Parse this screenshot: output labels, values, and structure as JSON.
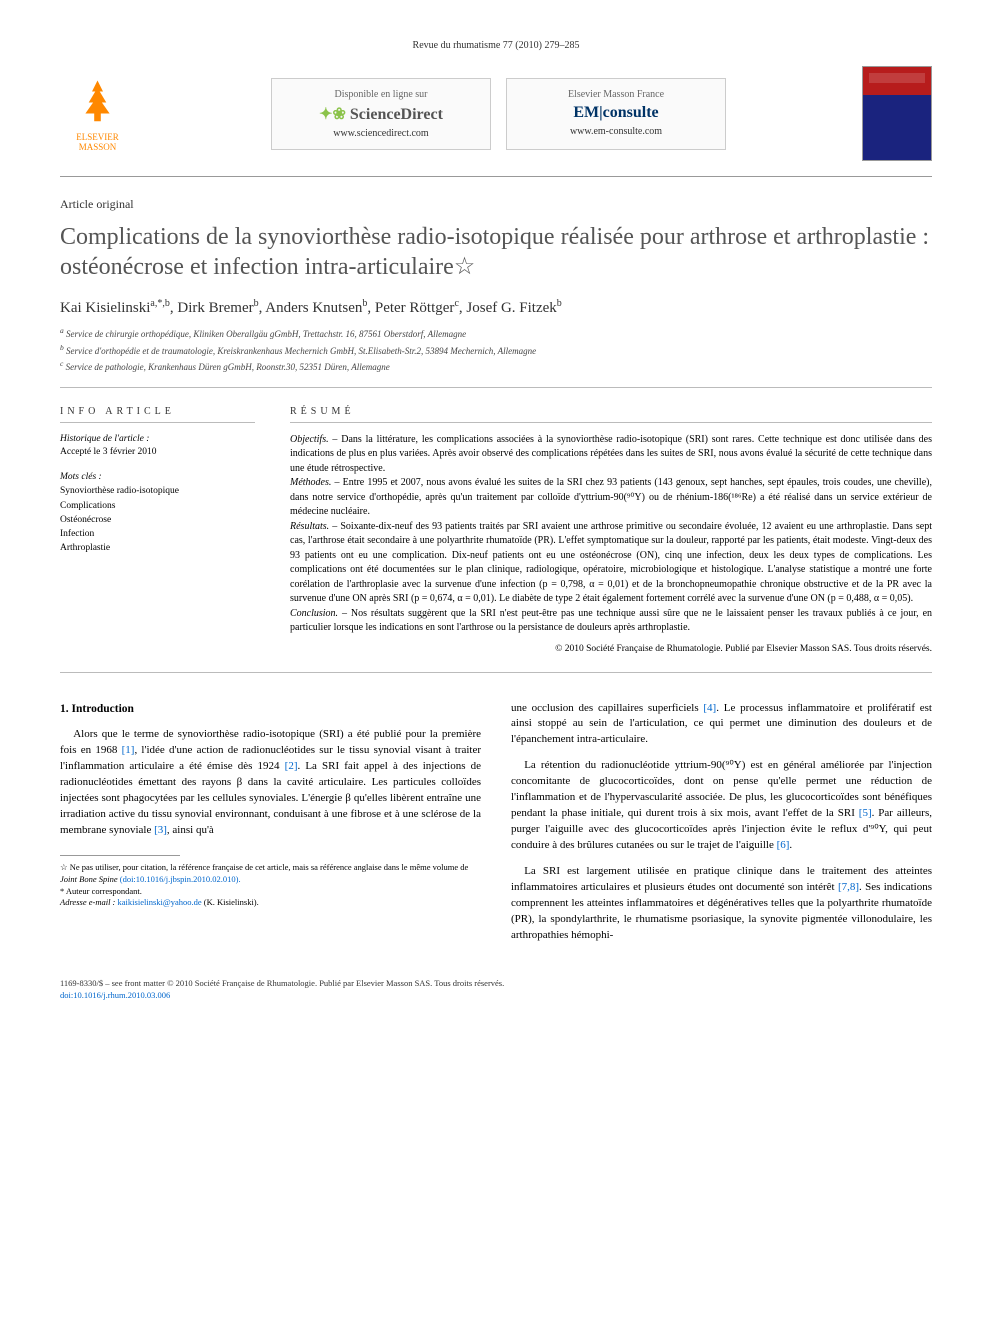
{
  "journal_header": "Revue du rhumatisme 77 (2010) 279–285",
  "elsevier_logo_text": "ELSEVIER MASSON",
  "banner_sd": {
    "line1": "Disponible en ligne sur",
    "brand": "ScienceDirect",
    "url": "www.sciencedirect.com"
  },
  "banner_em": {
    "line1": "Elsevier Masson France",
    "brand": "EM|consulte",
    "url": "www.em-consulte.com"
  },
  "article_type": "Article original",
  "title": "Complications de la synoviorthèse radio-isotopique réalisée pour arthrose et arthroplastie : ostéonécrose et infection intra-articulaire☆",
  "authors_html": "Kai Kisielinski<sup>a,*,b</sup>, Dirk Bremer<sup>b</sup>, Anders Knutsen<sup>b</sup>, Peter Röttger<sup>c</sup>, Josef G. Fitzek<sup>b</sup>",
  "affiliations": {
    "a": "Service de chirurgie orthopédique, Kliniken Oberallgäu gGmbH, Trettachstr. 16, 87561 Oberstdorf, Allemagne",
    "b": "Service d'orthopédie et de traumatologie, Kreiskrankenhaus Mechernich GmbH, St.Elisabeth-Str.2, 53894 Mechernich, Allemagne",
    "c": "Service de pathologie, Krankenhaus Düren gGmbH, Roonstr.30, 52351 Düren, Allemagne"
  },
  "info": {
    "label": "INFO ARTICLE",
    "history_heading": "Historique de l'article :",
    "history_text": "Accepté le 3 février 2010",
    "keywords_heading": "Mots clés :",
    "keywords": [
      "Synoviorthèse radio-isotopique",
      "Complications",
      "Ostéonécrose",
      "Infection",
      "Arthroplastie"
    ]
  },
  "resume": {
    "label": "RÉSUMÉ",
    "objectifs_head": "Objectifs. –",
    "objectifs": " Dans la littérature, les complications associées à la synoviorthèse radio-isotopique (SRI) sont rares. Cette technique est donc utilisée dans des indications de plus en plus variées. Après avoir observé des complications répétées dans les suites de SRI, nous avons évalué la sécurité de cette technique dans une étude rétrospective.",
    "methodes_head": "Méthodes. –",
    "methodes": " Entre 1995 et 2007, nous avons évalué les suites de la SRI chez 93 patients (143 genoux, sept hanches, sept épaules, trois coudes, une cheville), dans notre service d'orthopédie, après qu'un traitement par colloïde d'yttrium-90(⁹⁰Y) ou de rhénium-186(¹⁸⁶Re) a été réalisé dans un service extérieur de médecine nucléaire.",
    "resultats_head": "Résultats. –",
    "resultats": " Soixante-dix-neuf des 93 patients traités par SRI avaient une arthrose primitive ou secondaire évoluée, 12 avaient eu une arthroplastie. Dans sept cas, l'arthrose était secondaire à une polyarthrite rhumatoïde (PR). L'effet symptomatique sur la douleur, rapporté par les patients, était modeste. Vingt-deux des 93 patients ont eu une complication. Dix-neuf patients ont eu une ostéonécrose (ON), cinq une infection, deux les deux types de complications. Les complications ont été documentées sur le plan clinique, radiologique, opératoire, microbiologique et histologique. L'analyse statistique a montré une forte corélation de l'arthroplasie avec la survenue d'une infection (p = 0,798, α = 0,01) et de la bronchopneumopathie chronique obstructive et de la PR avec la survenue d'une ON après SRI (p = 0,674, α = 0,01). Le diabète de type 2 était également fortement corrélé avec la survenue d'une ON (p = 0,488, α = 0,05).",
    "conclusion_head": "Conclusion. –",
    "conclusion": " Nos résultats suggèrent que la SRI n'est peut-être pas une technique aussi sûre que ne le laissaient penser les travaux publiés à ce jour, en particulier lorsque les indications en sont l'arthrose ou la persistance de douleurs après arthroplastie.",
    "copyright": "© 2010 Société Française de Rhumatologie. Publié par Elsevier Masson SAS. Tous droits réservés."
  },
  "body": {
    "heading": "1. Introduction",
    "col1_p1_pre": "Alors que le terme de synoviorthèse radio-isotopique (SRI) a été publié pour la première fois en 1968 ",
    "col1_p1_ref1": "[1]",
    "col1_p1_mid1": ", l'idée d'une action de radionucléotides sur le tissu synovial visant à traiter l'inflammation articulaire a été émise dès 1924 ",
    "col1_p1_ref2": "[2]",
    "col1_p1_mid2": ". La SRI fait appel à des injections de radionucléotides émettant des rayons β dans la cavité articulaire. Les particules colloïdes injectées sont phagocytées par les cellules synoviales. L'énergie β qu'elles libèrent entraîne une irradiation active du tissu synovial environnant, conduisant à une fibrose et à une sclérose de la membrane synoviale ",
    "col1_p1_ref3": "[3]",
    "col1_p1_post": ", ainsi qu'à",
    "col2_p1_pre": "une occlusion des capillaires superficiels ",
    "col2_p1_ref4": "[4]",
    "col2_p1_post": ". Le processus inflammatoire et prolifératif est ainsi stoppé au sein de l'articulation, ce qui permet une diminution des douleurs et de l'épanchement intra-articulaire.",
    "col2_p2_pre": "La rétention du radionucléotide yttrium-90(⁹⁰Y) est en général améliorée par l'injection concomitante de glucocorticoïdes, dont on pense qu'elle permet une réduction de l'inflammation et de l'hypervascularité associée. De plus, les glucocorticoïdes sont bénéfiques pendant la phase initiale, qui durent trois à six mois, avant l'effet de la SRI ",
    "col2_p2_ref5": "[5]",
    "col2_p2_mid": ". Par ailleurs, purger l'aiguille avec des glucocorticoïdes après l'injection évite le reflux d'⁹⁰Y, qui peut conduire à des brûlures cutanées ou sur le trajet de l'aiguille ",
    "col2_p2_ref6": "[6]",
    "col2_p2_post": ".",
    "col2_p3_pre": "La SRI est largement utilisée en pratique clinique dans le traitement des atteintes inflammatoires articulaires et plusieurs études ont documenté son intérêt ",
    "col2_p3_ref78": "[7,8]",
    "col2_p3_post": ". Ses indications comprennent les atteintes inflammatoires et dégénératives telles que la polyarthrite rhumatoïde (PR), la spondylarthrite, le rhumatisme psoriasique, la synovite pigmentée villonodulaire, les arthropathies hémophi-"
  },
  "footnotes": {
    "star_pre": "☆ Ne pas utiliser, pour citation, la référence française de cet article, mais sa référence anglaise dans le même volume de ",
    "star_journal": "Joint Bone Spine",
    "star_doi": "(doi:10.1016/j.jbspin.2010.02.010).",
    "corresp": "* Auteur correspondant.",
    "email_label": "Adresse e-mail : ",
    "email": "kaikisielinski@yahoo.de",
    "email_post": " (K. Kisielinski)."
  },
  "footer": {
    "line1": "1169-8330/$ – see front matter © 2010 Société Française de Rhumatologie. Publié par Elsevier Masson SAS. Tous droits réservés.",
    "doi": "doi:10.1016/j.rhum.2010.03.006"
  }
}
